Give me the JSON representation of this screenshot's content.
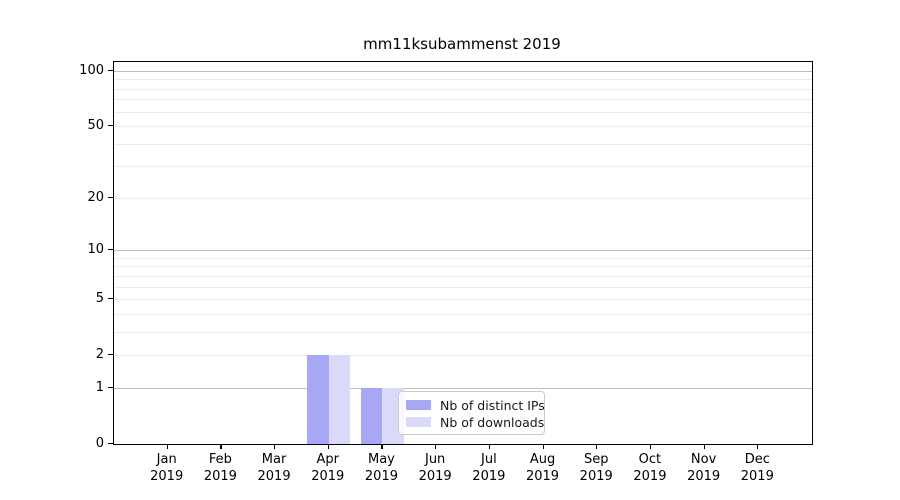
{
  "title": "mm11ksubammenst 2019",
  "chart_data": {
    "type": "bar",
    "title": "mm11ksubammenst 2019",
    "xlabel": "",
    "ylabel": "",
    "year": "2019",
    "categories": [
      "Jan",
      "Feb",
      "Mar",
      "Apr",
      "May",
      "Jun",
      "Jul",
      "Aug",
      "Sep",
      "Oct",
      "Nov",
      "Dec"
    ],
    "series": [
      {
        "name": "Nb of distinct IPs",
        "color": "#a7a7f5",
        "values": [
          0,
          0,
          0,
          2,
          1,
          0,
          0,
          0,
          0,
          0,
          0,
          0
        ]
      },
      {
        "name": "Nb of downloads",
        "color": "#dadaf8",
        "values": [
          0,
          0,
          0,
          2,
          1,
          0,
          0,
          0,
          0,
          0,
          0,
          0
        ]
      }
    ],
    "yscale": "log1p",
    "ylim": [
      0,
      100
    ],
    "yticks": [
      0,
      1,
      2,
      5,
      10,
      20,
      50,
      100
    ],
    "grid": {
      "on": true,
      "major": [
        1,
        10,
        100
      ],
      "minor": [
        2,
        3,
        4,
        5,
        6,
        7,
        8,
        9,
        20,
        30,
        40,
        50,
        60,
        70,
        80,
        90
      ]
    },
    "legend_position": "inside lower center"
  }
}
